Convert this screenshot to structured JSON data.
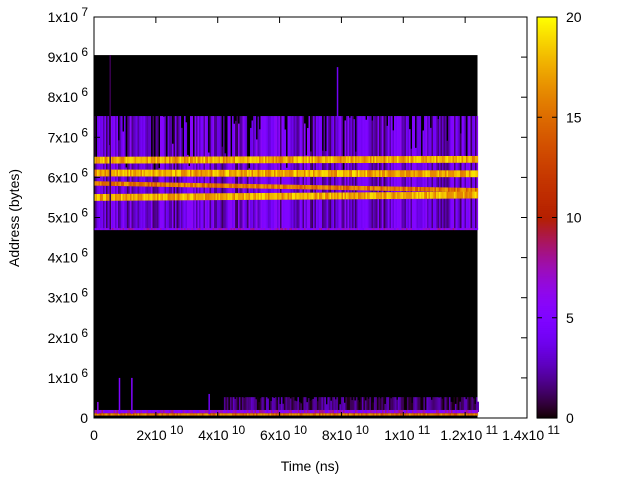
{
  "chart_data": {
    "type": "heatmap",
    "title": "",
    "xlabel": "Time (ns)",
    "ylabel": "Address (bytes)",
    "xlim": [
      0,
      140000000000.0
    ],
    "ylim": [
      0,
      10000000.0
    ],
    "clim": [
      0,
      20
    ],
    "grid": false,
    "legend": "colorbar-right",
    "x_ticks": [
      {
        "value": 0,
        "mant": "0",
        "exp": ""
      },
      {
        "value": 20000000000.0,
        "mant": "2x10",
        "exp": "10"
      },
      {
        "value": 40000000000.0,
        "mant": "4x10",
        "exp": "10"
      },
      {
        "value": 60000000000.0,
        "mant": "6x10",
        "exp": "10"
      },
      {
        "value": 80000000000.0,
        "mant": "8x10",
        "exp": "10"
      },
      {
        "value": 100000000000.0,
        "mant": "1x10",
        "exp": "11"
      },
      {
        "value": 120000000000.0,
        "mant": "1.2x10",
        "exp": "11"
      },
      {
        "value": 140000000000.0,
        "mant": "1.4x10",
        "exp": "11"
      }
    ],
    "y_ticks": [
      {
        "value": 0,
        "mant": "0",
        "exp": ""
      },
      {
        "value": 1000000.0,
        "mant": "1x10",
        "exp": "6"
      },
      {
        "value": 2000000.0,
        "mant": "2x10",
        "exp": "6"
      },
      {
        "value": 3000000.0,
        "mant": "3x10",
        "exp": "6"
      },
      {
        "value": 4000000.0,
        "mant": "4x10",
        "exp": "6"
      },
      {
        "value": 5000000.0,
        "mant": "5x10",
        "exp": "6"
      },
      {
        "value": 6000000.0,
        "mant": "6x10",
        "exp": "6"
      },
      {
        "value": 7000000.0,
        "mant": "7x10",
        "exp": "6"
      },
      {
        "value": 8000000.0,
        "mant": "8x10",
        "exp": "6"
      },
      {
        "value": 9000000.0,
        "mant": "9x10",
        "exp": "6"
      },
      {
        "value": 10000000.0,
        "mant": "1x10",
        "exp": "7"
      }
    ],
    "cb_ticks": [
      {
        "value": 0,
        "label": "0"
      },
      {
        "value": 5,
        "label": "5"
      },
      {
        "value": 10,
        "label": "10"
      },
      {
        "value": 15,
        "label": "15"
      },
      {
        "value": 20,
        "label": "20"
      }
    ],
    "data_extent": {
      "x": [
        0,
        124000000000.0
      ],
      "y": [
        0,
        9050000.0
      ]
    },
    "regions": [
      {
        "name": "heap-activity-block",
        "x": [
          0,
          124000000000.0
        ],
        "y": [
          4710000.0,
          7530000.0
        ],
        "value_range": [
          1,
          6
        ]
      },
      {
        "name": "lower-activity-block",
        "x": [
          42000000000.0,
          124000000000.0
        ],
        "y": [
          150000.0,
          520000.0
        ],
        "value_range": [
          0,
          3
        ]
      }
    ],
    "bands": [
      {
        "name": "band-1",
        "x": [
          0,
          124000000000.0
        ],
        "y_start": 6430000.0,
        "y_end": 6450000.0,
        "width": 170000.0,
        "value": 17
      },
      {
        "name": "band-2",
        "x": [
          0,
          124000000000.0
        ],
        "y_start": 6110000.0,
        "y_end": 6090000.0,
        "width": 170000.0,
        "value": 17
      },
      {
        "name": "band-3",
        "x": [
          0,
          124000000000.0
        ],
        "y_start": 5850000.0,
        "y_end": 5680000.0,
        "width": 110000.0,
        "value": 15
      },
      {
        "name": "band-4",
        "x": [
          0,
          124000000000.0
        ],
        "y_start": 5500000.0,
        "y_end": 5560000.0,
        "width": 170000.0,
        "value": 17
      },
      {
        "name": "bottom-line-purple",
        "x": [
          0,
          124000000000.0
        ],
        "y_start": 4710000.0,
        "y_end": 4710000.0,
        "width": 50000.0,
        "value": 6
      },
      {
        "name": "bottom-band-hot",
        "x": [
          0,
          124000000000.0
        ],
        "y_start": 90000.0,
        "y_end": 90000.0,
        "width": 60000.0,
        "value": 15
      },
      {
        "name": "bottom-band-purple",
        "x": [
          0,
          124000000000.0
        ],
        "y_start": 160000.0,
        "y_end": 160000.0,
        "width": 80000.0,
        "value": 6
      }
    ],
    "spikes": [
      {
        "x": 5000000000.0,
        "y": [
          4700000.0,
          9050000.0
        ],
        "value": 1
      },
      {
        "x": 78500000000.0,
        "y": [
          7500000.0,
          8750000.0
        ],
        "value": 4
      },
      {
        "x": 8000000000.0,
        "y": [
          100000.0,
          1000000.0
        ],
        "value": 5
      },
      {
        "x": 12000000000.0,
        "y": [
          100000.0,
          1000000.0
        ],
        "value": 5
      },
      {
        "x": 37000000000.0,
        "y": [
          100000.0,
          600000.0
        ],
        "value": 4
      },
      {
        "x": 1000000000.0,
        "y": [
          100000.0,
          400000.0
        ],
        "value": 6
      }
    ]
  }
}
